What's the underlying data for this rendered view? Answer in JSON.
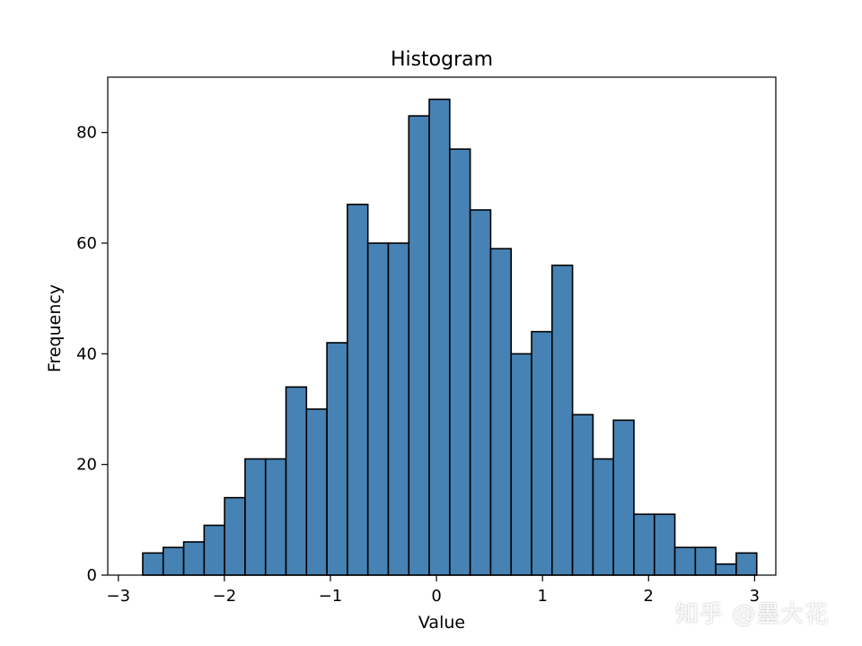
{
  "chart_data": {
    "type": "bar",
    "title": "Histogram",
    "xlabel": "Value",
    "ylabel": "Frequency",
    "xlim": [
      -3.1,
      3.2
    ],
    "ylim": [
      0,
      90
    ],
    "x_ticks": [
      -3,
      -2,
      -1,
      0,
      1,
      2,
      3
    ],
    "y_ticks": [
      0,
      20,
      40,
      60,
      80
    ],
    "bin_start": -2.77,
    "bin_width": 0.193,
    "values": [
      4,
      5,
      6,
      9,
      14,
      21,
      21,
      34,
      30,
      42,
      67,
      60,
      60,
      83,
      86,
      77,
      66,
      59,
      40,
      44,
      56,
      29,
      21,
      28,
      11,
      11,
      5,
      5,
      2,
      4
    ],
    "bar_color": "#4682b4",
    "edge_color": "#000000",
    "grid": false
  },
  "watermark": {
    "text": "知乎 @墨大花"
  }
}
